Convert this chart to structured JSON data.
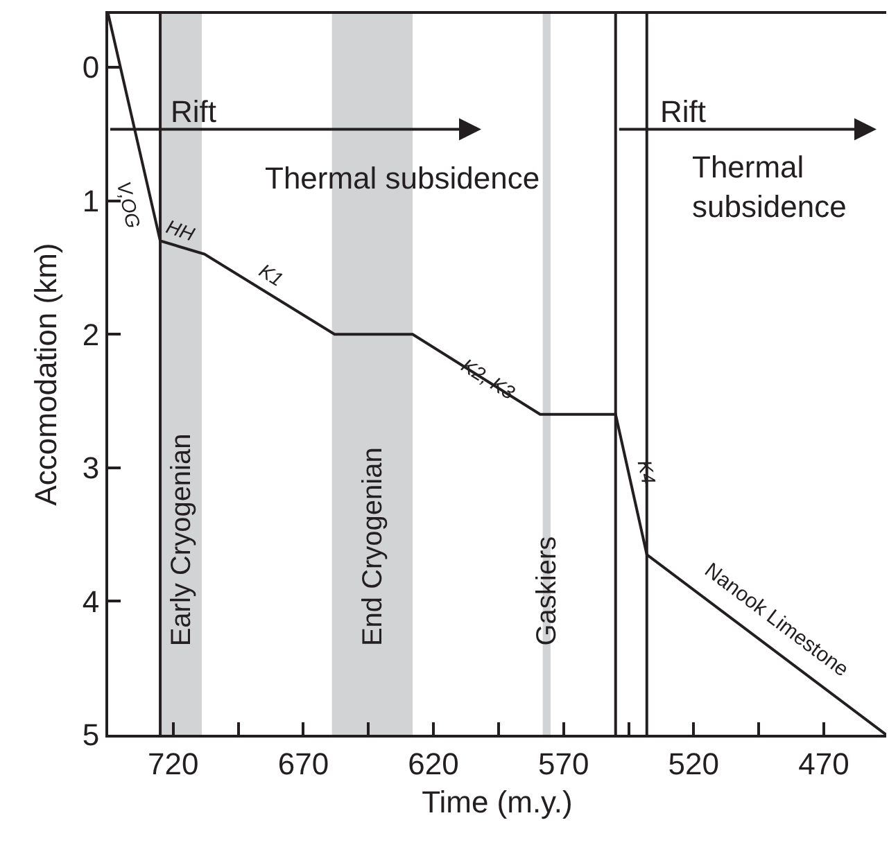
{
  "chart_data": {
    "type": "line",
    "xlabel": "Time (m.y.)",
    "ylabel": "Accomodation (km)",
    "xlim": [
      745,
      446
    ],
    "ylim": [
      5,
      -0.4
    ],
    "xticks": [
      720,
      {
        "value": 695,
        "label": null
      },
      670,
      {
        "value": 645,
        "label": null
      },
      620,
      {
        "value": 595,
        "label": null
      },
      570,
      {
        "value": 545,
        "label": null
      },
      520,
      {
        "value": 495,
        "label": null
      },
      470
    ],
    "yticks": [
      0,
      1,
      2,
      3,
      4,
      5
    ],
    "grid": false,
    "marker": "none",
    "line_style": "solid",
    "series": [
      {
        "color": "#231f20",
        "x": [
          745,
          725,
          708,
          658,
          628,
          579,
          550,
          538,
          446
        ],
        "values": [
          -0.4,
          1.3,
          1.4,
          2.0,
          2.0,
          2.6,
          2.6,
          3.65,
          5.0
        ]
      }
    ],
    "bands": [
      {
        "axis": "x",
        "from": 725,
        "to": 709,
        "label": "Early Cryogenian",
        "color": "#d1d3d4"
      },
      {
        "axis": "x",
        "from": 659,
        "to": 628,
        "label": "End Cryogenian",
        "color": "#d1d3d4"
      },
      {
        "axis": "x",
        "from": 578,
        "to": 575,
        "label": "Gaskiers",
        "color": "#d1d3d4"
      }
    ],
    "ref_lines": [
      {
        "axis": "x",
        "value": 725,
        "color": "#231f20"
      },
      {
        "axis": "x",
        "value": 550,
        "color": "#231f20"
      },
      {
        "axis": "x",
        "value": 538,
        "color": "#231f20"
      }
    ],
    "annotations": [
      "Rift",
      "Thermal subsidence",
      "Rift",
      "Thermal\nsubsidence",
      "V,OG",
      "HH",
      "K1",
      "K2, K3",
      "K4",
      "Nanook Limestone"
    ]
  }
}
